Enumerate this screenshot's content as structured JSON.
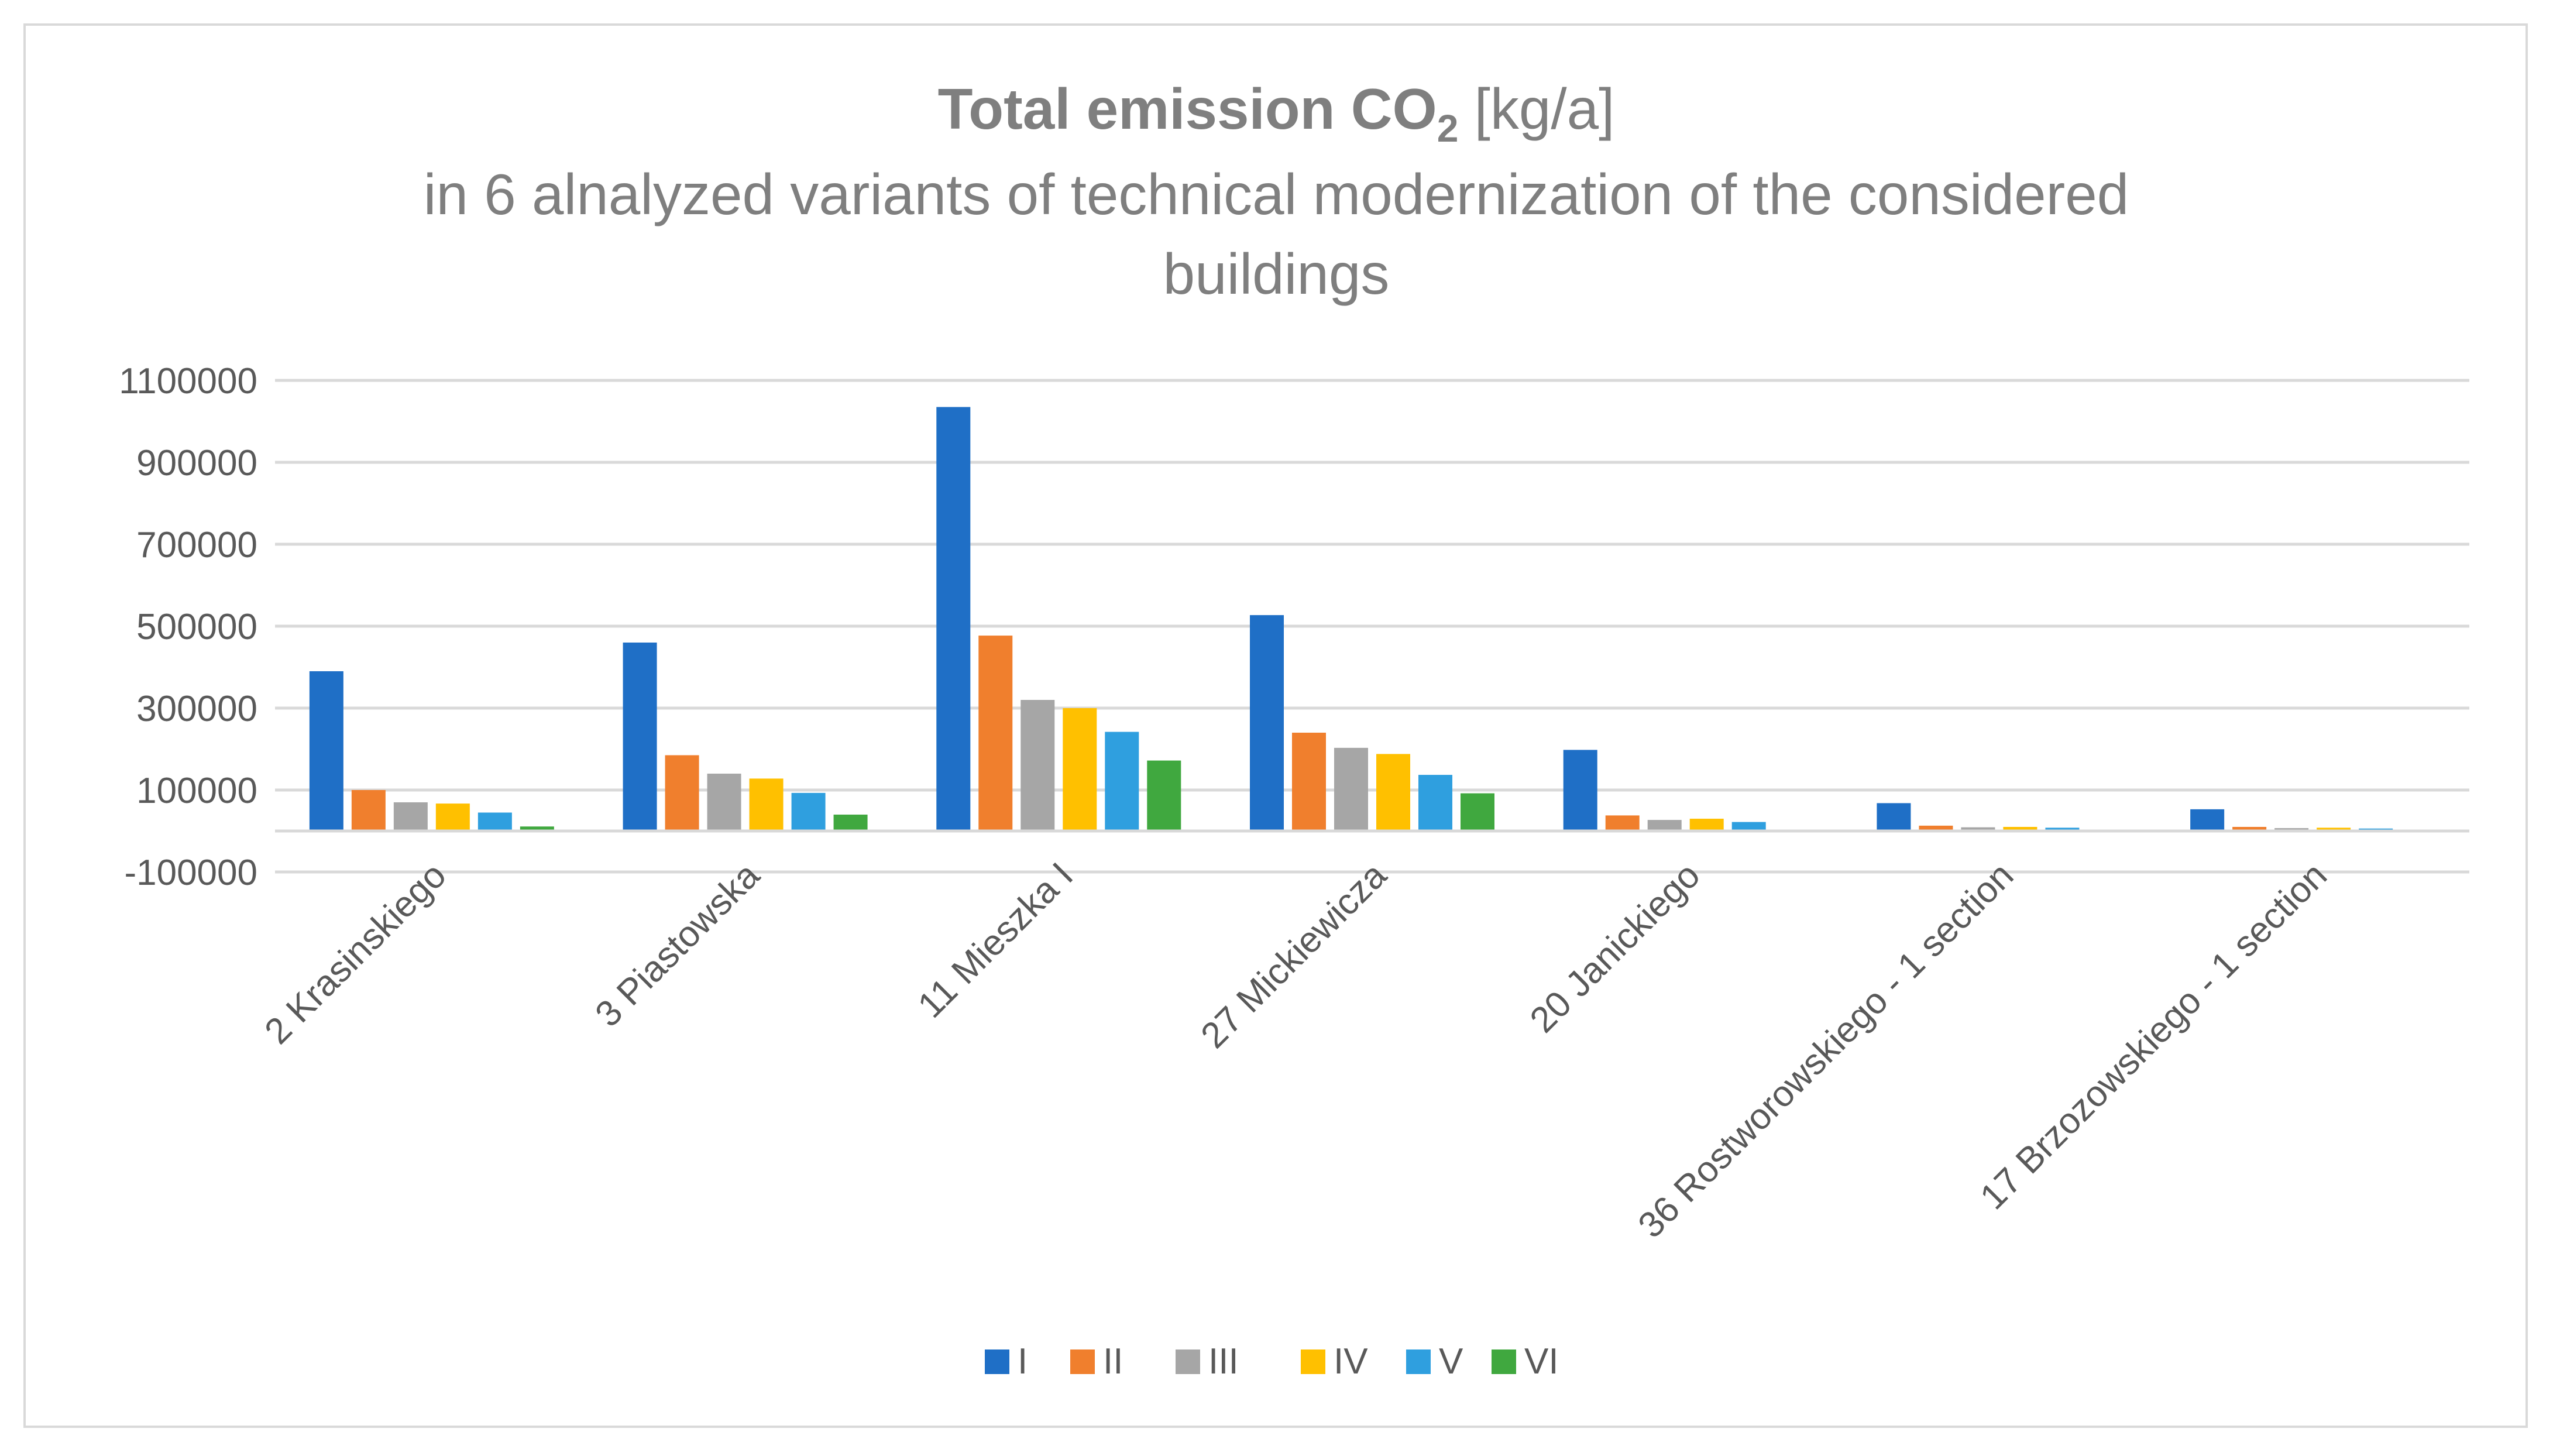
{
  "chart_data": {
    "type": "bar",
    "title": {
      "bold": "Total emission CO",
      "subscript": "2",
      "unit": " [kg/a]",
      "line2": "in 6 alnalyzed variants of technical modernization of the considered",
      "line3": "buildings"
    },
    "xlabel": "",
    "ylabel": "",
    "ylim": [
      -100000,
      1100000
    ],
    "yticks": [
      -100000,
      100000,
      300000,
      500000,
      700000,
      900000,
      1100000
    ],
    "ytick_labels": [
      "-100000",
      "100000",
      "300000",
      "500000",
      "700000",
      "900000",
      "1100000"
    ],
    "grid": true,
    "legend_position": "bottom",
    "categories": [
      "2 Krasinskiego",
      "3 Piastowska",
      "11 Mieszka I",
      "27 Mickiewicza",
      "20 Janickiego",
      "36 Rostworowskiego - 1 section",
      "17 Brzozowskiego - 1 section"
    ],
    "series": [
      {
        "name": "I",
        "color": "#1f6fc6",
        "values": [
          390000,
          460000,
          1035000,
          527000,
          198000,
          68000,
          53000
        ]
      },
      {
        "name": "II",
        "color": "#f07f2d",
        "values": [
          100000,
          185000,
          477000,
          240000,
          38000,
          13000,
          10000
        ]
      },
      {
        "name": "III",
        "color": "#a6a6a6",
        "values": [
          70000,
          140000,
          320000,
          203000,
          27000,
          9000,
          7000
        ]
      },
      {
        "name": "IV",
        "color": "#ffc000",
        "values": [
          67000,
          128000,
          300000,
          188000,
          30000,
          10000,
          8000
        ]
      },
      {
        "name": "V",
        "color": "#2f9fdf",
        "values": [
          45000,
          93000,
          242000,
          137000,
          22000,
          8000,
          6000
        ]
      },
      {
        "name": "VI",
        "color": "#40a83f",
        "values": [
          11000,
          40000,
          172000,
          92000,
          0,
          0,
          0
        ]
      }
    ]
  }
}
